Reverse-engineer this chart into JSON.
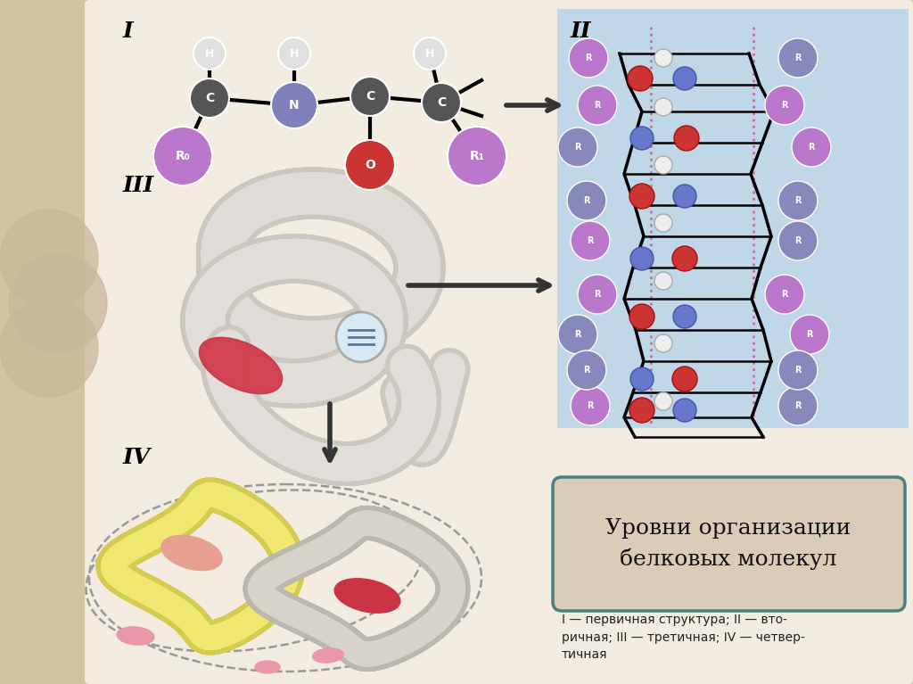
{
  "background_color": "#d4c5a0",
  "main_bg": "#f2ede0",
  "title_text": "Уровни организации\nбелковых молекул",
  "title_box_color": "#d9cdb8",
  "title_box_border": "#4a8080",
  "caption_text": "I — первичная структура; II — вто-\nричная; III — третичная; IV — четвер-\nтичная",
  "label_I": "I",
  "label_II": "II",
  "label_III": "III",
  "label_IV": "IV",
  "arrow_color": "#333333",
  "molecule_bg": "#c5dded",
  "left_circle_color": "#c8b89a",
  "node_C_color": "#555555",
  "node_N_color": "#8080bb",
  "node_R_color": "#bb77cc",
  "node_O_color": "#cc3333",
  "node_H_color": "#cccccc",
  "tube_gray": "#d5d0c8",
  "tube_gray_dark": "#b8b4ac",
  "tube_yellow": "#f0e880",
  "red_heme": "#cc3344",
  "pink_strip": "#e09090",
  "sec_bg": "#bad4e8"
}
